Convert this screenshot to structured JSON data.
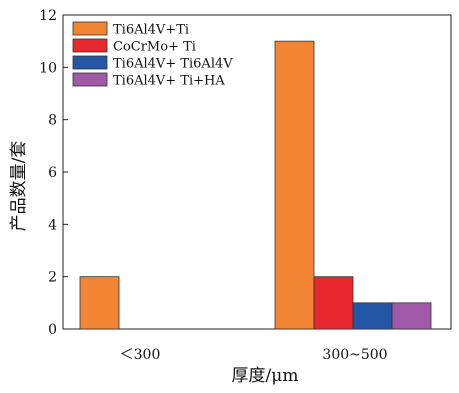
{
  "chart_data": {
    "type": "bar",
    "categories": [
      "<300",
      "300~500"
    ],
    "category_labels": [
      "＜300",
      "300~500"
    ],
    "series": [
      {
        "name": "Ti6Al4V+Ti",
        "values": [
          2,
          11
        ],
        "color": "#f28533"
      },
      {
        "name": "CoCrMo+ Ti",
        "values": [
          0,
          2
        ],
        "color": "#e8282e"
      },
      {
        "name": "Ti6Al4V+ Ti6Al4V",
        "values": [
          0,
          1
        ],
        "color": "#2456a6"
      },
      {
        "name": "Ti6Al4V+ Ti+HA",
        "values": [
          0,
          1
        ],
        "color": "#a05aa8"
      }
    ],
    "xlabel": "厚度/μm",
    "ylabel": "产品数量/套",
    "ylim": [
      0,
      12
    ],
    "yticks": [
      0,
      2,
      4,
      6,
      8,
      10,
      12
    ],
    "grid": false,
    "legend_position": "top-left"
  }
}
